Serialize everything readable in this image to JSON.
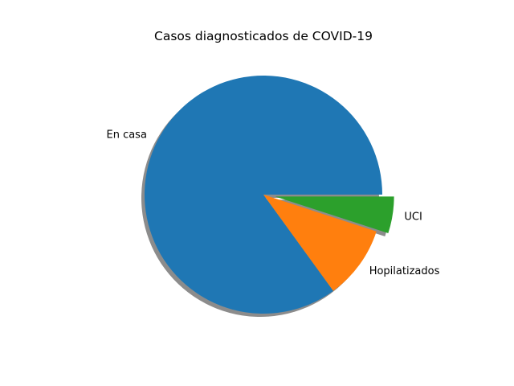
{
  "chart_data": {
    "type": "pie",
    "title": "Casos diagnosticados de COVID-19",
    "categories": [
      "En casa",
      "Hopilatizados",
      "UCI"
    ],
    "values": [
      85,
      10,
      5
    ],
    "colors": [
      "#1f77b4",
      "#ff7f0e",
      "#2ca02c"
    ],
    "explode": [
      0,
      0,
      0.1
    ],
    "shadow": true,
    "start_angle_deg": 0,
    "direction": "counterclockwise"
  }
}
